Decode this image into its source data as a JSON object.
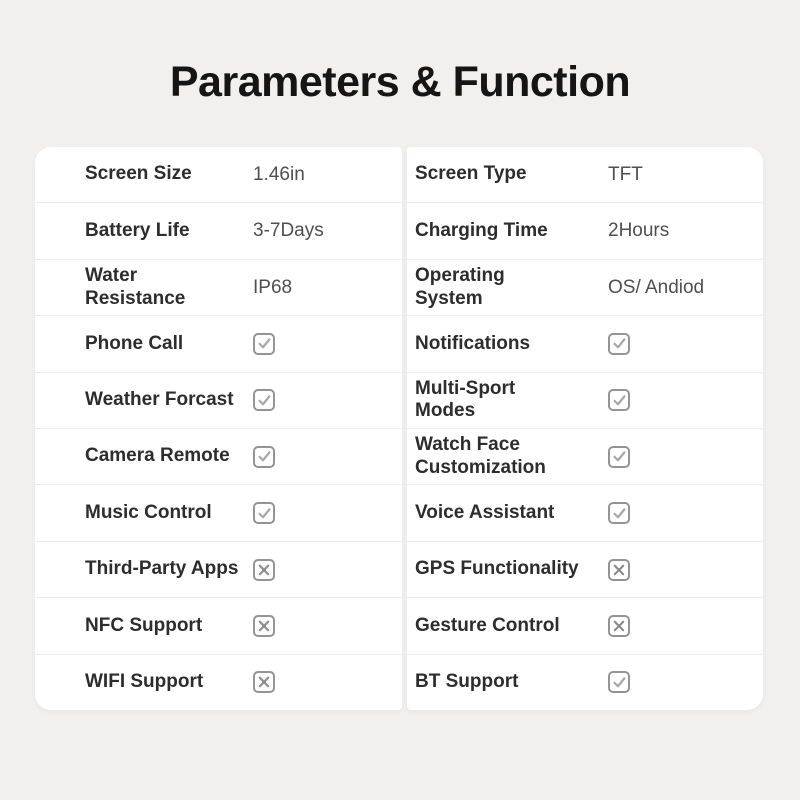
{
  "title": "Parameters & Function",
  "colors": {
    "page_background": "#f1f0ee",
    "card_background": "#ffffff",
    "title_text": "#151515",
    "label_text": "#2d2d2d",
    "value_text": "#4f4f4f",
    "divider": "#ececec",
    "checkbox_border": "#949494",
    "check_mark": "#a8a8a8",
    "cross_mark": "#8a8a8a"
  },
  "icons": {
    "supported": "check-icon",
    "unsupported": "cross-icon"
  },
  "table": {
    "left": [
      {
        "label": "Screen Size",
        "type": "text",
        "value": "1.46in"
      },
      {
        "label": "Battery Life",
        "type": "text",
        "value": "3-7Days"
      },
      {
        "label": "Water\nResistance",
        "type": "text",
        "value": "IP68"
      },
      {
        "label": "Phone Call",
        "type": "check"
      },
      {
        "label": "Weather Forcast",
        "type": "check"
      },
      {
        "label": "Camera Remote",
        "type": "check"
      },
      {
        "label": "Music Control",
        "type": "check"
      },
      {
        "label": "Third-Party Apps",
        "type": "cross"
      },
      {
        "label": "NFC Support",
        "type": "cross"
      },
      {
        "label": "WIFI Support",
        "type": "cross"
      }
    ],
    "right": [
      {
        "label": "Screen Type",
        "type": "text",
        "value": "TFT"
      },
      {
        "label": "Charging Time",
        "type": "text",
        "value": "2Hours"
      },
      {
        "label": "Operating\nSystem",
        "type": "text",
        "value": "OS/ Andiod"
      },
      {
        "label": "Notifications",
        "type": "check"
      },
      {
        "label": "Multi-Sport\nModes",
        "type": "check"
      },
      {
        "label": "Watch Face\nCustomization",
        "type": "check"
      },
      {
        "label": "Voice Assistant",
        "type": "check"
      },
      {
        "label": "GPS Functionality",
        "type": "cross"
      },
      {
        "label": "Gesture Control",
        "type": "cross"
      },
      {
        "label": "BT Support",
        "type": "check"
      }
    ]
  }
}
